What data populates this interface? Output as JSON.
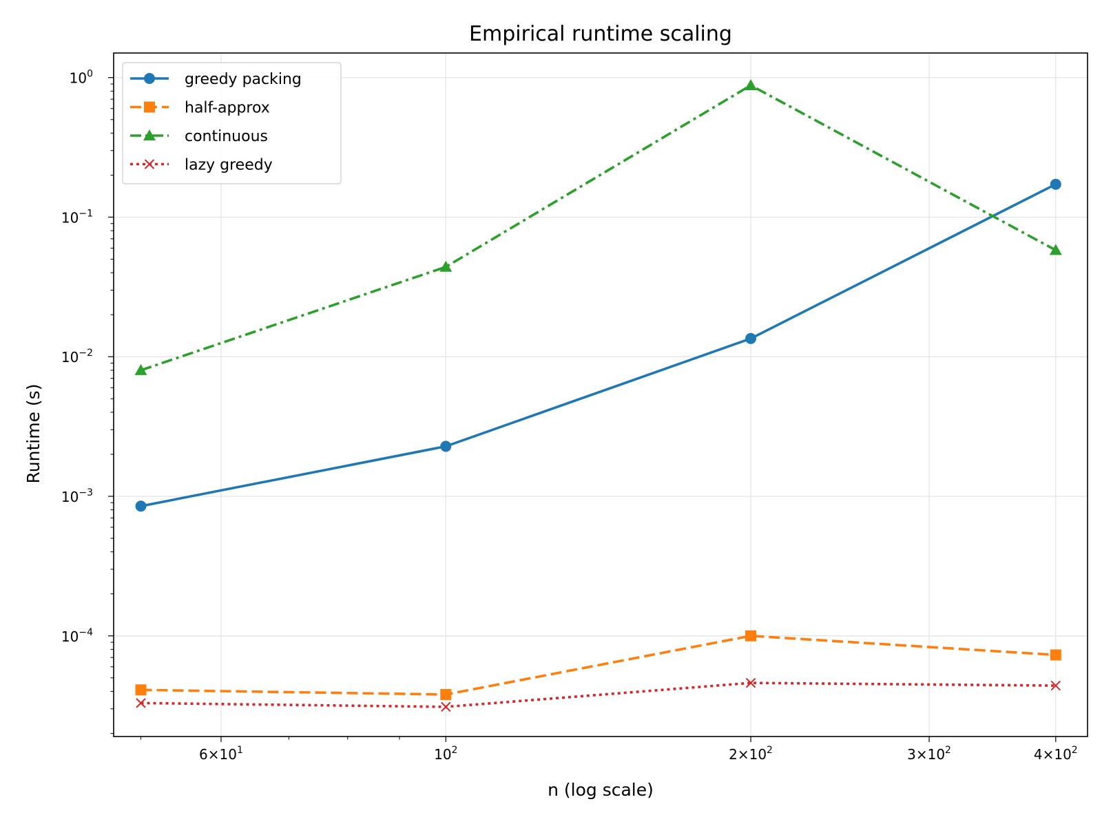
{
  "chart_data": {
    "type": "line",
    "title": "Empirical runtime scaling",
    "xlabel": "n (log scale)",
    "ylabel": "Runtime (s)",
    "xscale": "log",
    "yscale": "log",
    "xlim": [
      47,
      430
    ],
    "ylim": [
      1.9e-05,
      1.5
    ],
    "grid": true,
    "legend_position": "top-left",
    "x": [
      50,
      100,
      200,
      400
    ],
    "x_ticks": [
      {
        "value": 60,
        "base": "6",
        "exp": "1"
      },
      {
        "value": 100,
        "base": "",
        "exp": "2"
      },
      {
        "value": 200,
        "base": "2",
        "exp": "2"
      },
      {
        "value": 300,
        "base": "3",
        "exp": "2"
      },
      {
        "value": 400,
        "base": "4",
        "exp": "2"
      }
    ],
    "y_ticks": [
      {
        "value": 1,
        "exp": "0"
      },
      {
        "value": 0.1,
        "exp": "−1"
      },
      {
        "value": 0.01,
        "exp": "−2"
      },
      {
        "value": 0.001,
        "exp": "−3"
      },
      {
        "value": 0.0001,
        "exp": "−4"
      }
    ],
    "series": [
      {
        "name": "greedy packing",
        "color": "#1f77b4",
        "dash": "solid",
        "marker": "circle",
        "values": [
          0.00085,
          0.00228,
          0.0135,
          0.172
        ]
      },
      {
        "name": "half-approx",
        "color": "#ff7f0e",
        "dash": "dashed",
        "marker": "square",
        "values": [
          4.1e-05,
          3.8e-05,
          0.0001,
          7.3e-05
        ]
      },
      {
        "name": "continuous",
        "color": "#2ca02c",
        "dash": "dashdot",
        "marker": "triangle",
        "values": [
          0.008,
          0.044,
          0.88,
          0.058
        ]
      },
      {
        "name": "lazy greedy",
        "color": "#d62728",
        "dash": "dotted",
        "marker": "x",
        "values": [
          3.3e-05,
          3.1e-05,
          4.6e-05,
          4.4e-05
        ]
      }
    ]
  }
}
